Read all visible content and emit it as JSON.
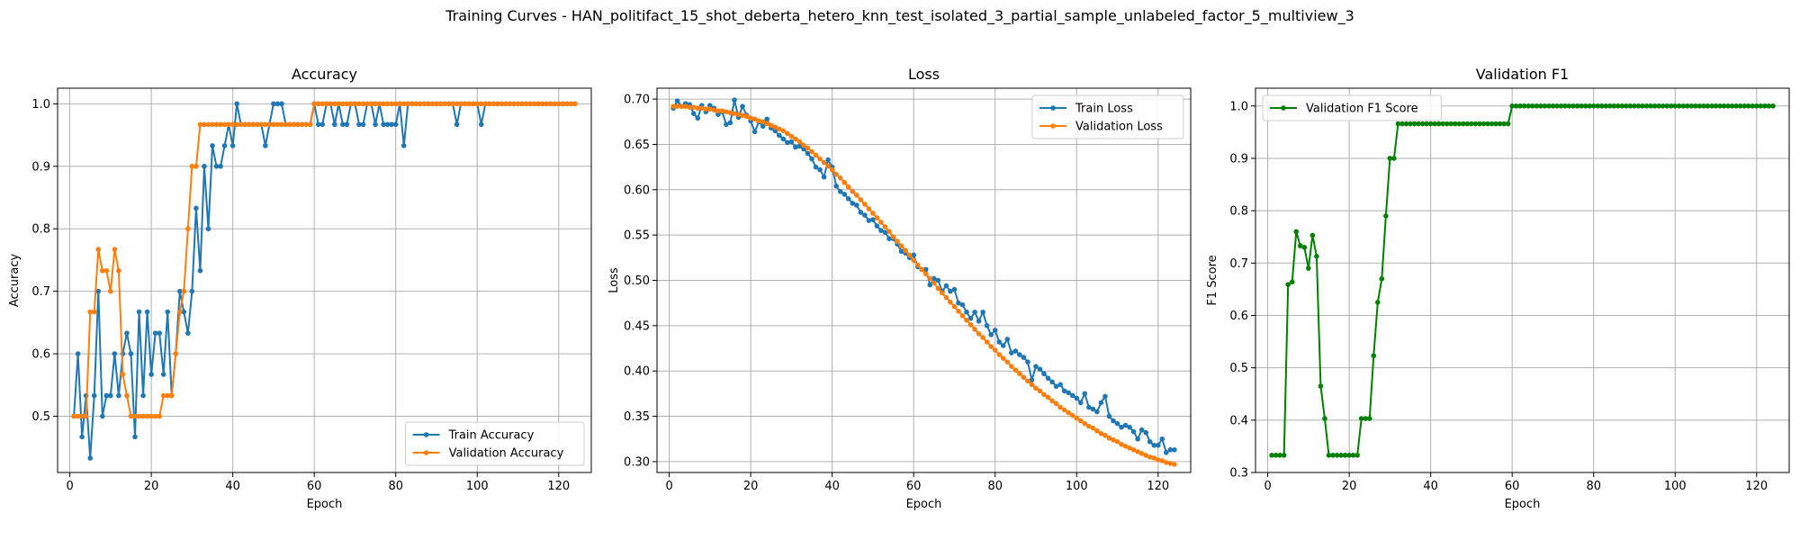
{
  "figure": {
    "suptitle": "Training Curves - HAN_politifact_15_shot_deberta_hetero_knn_test_isolated_3_partial_sample_unlabeled_factor_5_multiview_3"
  },
  "colors": {
    "blue": "#1f77b4",
    "orange": "#ff7f0e",
    "green": "#008000",
    "grid": "#b0b0b0"
  },
  "chart_data": [
    {
      "type": "line",
      "title": "Accuracy",
      "xlabel": "Epoch",
      "ylabel": "Accuracy",
      "xlim": [
        -3,
        128
      ],
      "ylim": [
        0.41,
        1.025
      ],
      "xticks": [
        0,
        20,
        40,
        60,
        80,
        100,
        120
      ],
      "yticks": [
        0.5,
        0.6,
        0.7,
        0.8,
        0.9,
        1.0
      ],
      "ytick_labels": [
        "0.5",
        "0.6",
        "0.7",
        "0.8",
        "0.9",
        "1.0"
      ],
      "grid": true,
      "legend": "lower-right",
      "x": [
        1,
        2,
        3,
        4,
        5,
        6,
        7,
        8,
        9,
        10,
        11,
        12,
        13,
        14,
        15,
        16,
        17,
        18,
        19,
        20,
        21,
        22,
        23,
        24,
        25,
        26,
        27,
        28,
        29,
        30,
        31,
        32,
        33,
        34,
        35,
        36,
        37,
        38,
        39,
        40,
        41,
        42,
        43,
        44,
        45,
        46,
        47,
        48,
        49,
        50,
        51,
        52,
        53,
        54,
        55,
        56,
        57,
        58,
        59,
        60,
        61,
        62,
        63,
        64,
        65,
        66,
        67,
        68,
        69,
        70,
        71,
        72,
        73,
        74,
        75,
        76,
        77,
        78,
        79,
        80,
        81,
        82,
        83,
        84,
        85,
        86,
        87,
        88,
        89,
        90,
        91,
        92,
        93,
        94,
        95,
        96,
        97,
        98,
        99,
        100,
        101,
        102,
        103,
        104,
        105,
        106,
        107,
        108,
        109,
        110,
        111,
        112,
        113,
        114,
        115,
        116,
        117,
        118,
        119,
        120,
        121,
        122,
        123,
        124
      ],
      "series": [
        {
          "name": "Train Accuracy",
          "color": "#1f77b4",
          "values": [
            0.5,
            0.6,
            0.467,
            0.533,
            0.433,
            0.533,
            0.7,
            0.5,
            0.533,
            0.533,
            0.6,
            0.533,
            0.6,
            0.633,
            0.6,
            0.467,
            0.667,
            0.533,
            0.667,
            0.567,
            0.633,
            0.633,
            0.567,
            0.667,
            0.533,
            0.6,
            0.7,
            0.667,
            0.633,
            0.7,
            0.833,
            0.733,
            0.9,
            0.8,
            0.933,
            0.9,
            0.9,
            0.933,
            0.967,
            0.933,
            1.0,
            0.967,
            0.967,
            0.967,
            0.967,
            0.967,
            0.967,
            0.933,
            0.967,
            1.0,
            1.0,
            1.0,
            0.967,
            0.967,
            0.967,
            0.967,
            0.967,
            0.967,
            0.967,
            1.0,
            0.967,
            0.967,
            1.0,
            1.0,
            0.967,
            1.0,
            0.967,
            0.967,
            1.0,
            1.0,
            0.967,
            0.967,
            1.0,
            1.0,
            0.967,
            1.0,
            0.967,
            0.967,
            0.967,
            0.967,
            1.0,
            0.933,
            1.0,
            1.0,
            1.0,
            1.0,
            1.0,
            1.0,
            1.0,
            1.0,
            1.0,
            1.0,
            1.0,
            1.0,
            0.967,
            1.0,
            1.0,
            1.0,
            1.0,
            1.0,
            0.967,
            1.0,
            1.0,
            1.0,
            1.0,
            1.0,
            1.0,
            1.0,
            1.0,
            1.0,
            1.0,
            1.0,
            1.0,
            1.0,
            1.0,
            1.0,
            1.0,
            1.0,
            1.0,
            1.0,
            1.0,
            1.0,
            1.0,
            1.0
          ]
        },
        {
          "name": "Validation Accuracy",
          "color": "#ff7f0e",
          "values": [
            0.5,
            0.5,
            0.5,
            0.5,
            0.667,
            0.667,
            0.767,
            0.733,
            0.733,
            0.7,
            0.767,
            0.733,
            0.567,
            0.533,
            0.5,
            0.5,
            0.5,
            0.5,
            0.5,
            0.5,
            0.5,
            0.5,
            0.533,
            0.533,
            0.533,
            0.6,
            0.667,
            0.7,
            0.8,
            0.9,
            0.9,
            0.967,
            0.967,
            0.967,
            0.967,
            0.967,
            0.967,
            0.967,
            0.967,
            0.967,
            0.967,
            0.967,
            0.967,
            0.967,
            0.967,
            0.967,
            0.967,
            0.967,
            0.967,
            0.967,
            0.967,
            0.967,
            0.967,
            0.967,
            0.967,
            0.967,
            0.967,
            0.967,
            0.967,
            1.0,
            1.0,
            1.0,
            1.0,
            1.0,
            1.0,
            1.0,
            1.0,
            1.0,
            1.0,
            1.0,
            1.0,
            1.0,
            1.0,
            1.0,
            1.0,
            1.0,
            1.0,
            1.0,
            1.0,
            1.0,
            1.0,
            1.0,
            1.0,
            1.0,
            1.0,
            1.0,
            1.0,
            1.0,
            1.0,
            1.0,
            1.0,
            1.0,
            1.0,
            1.0,
            1.0,
            1.0,
            1.0,
            1.0,
            1.0,
            1.0,
            1.0,
            1.0,
            1.0,
            1.0,
            1.0,
            1.0,
            1.0,
            1.0,
            1.0,
            1.0,
            1.0,
            1.0,
            1.0,
            1.0,
            1.0,
            1.0,
            1.0,
            1.0,
            1.0,
            1.0,
            1.0,
            1.0,
            1.0,
            1.0
          ]
        }
      ]
    },
    {
      "type": "line",
      "title": "Loss",
      "xlabel": "Epoch",
      "ylabel": "Loss",
      "xlim": [
        -3,
        128
      ],
      "ylim": [
        0.288,
        0.712
      ],
      "xticks": [
        0,
        20,
        40,
        60,
        80,
        100,
        120
      ],
      "yticks": [
        0.3,
        0.35,
        0.4,
        0.45,
        0.5,
        0.55,
        0.6,
        0.65,
        0.7
      ],
      "ytick_labels": [
        "0.30",
        "0.35",
        "0.40",
        "0.45",
        "0.50",
        "0.55",
        "0.60",
        "0.65",
        "0.70"
      ],
      "grid": true,
      "legend": "top-right",
      "x": [
        1,
        2,
        3,
        4,
        5,
        6,
        7,
        8,
        9,
        10,
        11,
        12,
        13,
        14,
        15,
        16,
        17,
        18,
        19,
        20,
        21,
        22,
        23,
        24,
        25,
        26,
        27,
        28,
        29,
        30,
        31,
        32,
        33,
        34,
        35,
        36,
        37,
        38,
        39,
        40,
        41,
        42,
        43,
        44,
        45,
        46,
        47,
        48,
        49,
        50,
        51,
        52,
        53,
        54,
        55,
        56,
        57,
        58,
        59,
        60,
        61,
        62,
        63,
        64,
        65,
        66,
        67,
        68,
        69,
        70,
        71,
        72,
        73,
        74,
        75,
        76,
        77,
        78,
        79,
        80,
        81,
        82,
        83,
        84,
        85,
        86,
        87,
        88,
        89,
        90,
        91,
        92,
        93,
        94,
        95,
        96,
        97,
        98,
        99,
        100,
        101,
        102,
        103,
        104,
        105,
        106,
        107,
        108,
        109,
        110,
        111,
        112,
        113,
        114,
        115,
        116,
        117,
        118,
        119,
        120,
        121,
        122,
        123,
        124
      ],
      "series": [
        {
          "name": "Train Loss",
          "color": "#1f77b4",
          "values": [
            0.69,
            0.698,
            0.692,
            0.695,
            0.694,
            0.684,
            0.679,
            0.693,
            0.686,
            0.693,
            0.69,
            0.683,
            0.686,
            0.672,
            0.674,
            0.699,
            0.68,
            0.692,
            0.682,
            0.676,
            0.664,
            0.675,
            0.67,
            0.678,
            0.668,
            0.665,
            0.66,
            0.656,
            0.652,
            0.653,
            0.647,
            0.648,
            0.645,
            0.64,
            0.634,
            0.625,
            0.622,
            0.614,
            0.633,
            0.625,
            0.604,
            0.598,
            0.595,
            0.59,
            0.585,
            0.583,
            0.575,
            0.572,
            0.566,
            0.567,
            0.56,
            0.555,
            0.553,
            0.546,
            0.546,
            0.54,
            0.532,
            0.53,
            0.525,
            0.528,
            0.515,
            0.512,
            0.512,
            0.495,
            0.502,
            0.5,
            0.488,
            0.494,
            0.488,
            0.49,
            0.475,
            0.473,
            0.465,
            0.458,
            0.465,
            0.455,
            0.465,
            0.45,
            0.44,
            0.445,
            0.432,
            0.428,
            0.435,
            0.42,
            0.422,
            0.418,
            0.415,
            0.41,
            0.39,
            0.405,
            0.402,
            0.397,
            0.392,
            0.388,
            0.383,
            0.385,
            0.378,
            0.376,
            0.373,
            0.37,
            0.365,
            0.375,
            0.36,
            0.358,
            0.355,
            0.365,
            0.372,
            0.35,
            0.345,
            0.342,
            0.338,
            0.34,
            0.338,
            0.333,
            0.325,
            0.335,
            0.332,
            0.322,
            0.318,
            0.318,
            0.325,
            0.31,
            0.313,
            0.313
          ]
        },
        {
          "name": "Validation Loss",
          "color": "#ff7f0e",
          "values": [
            0.692,
            0.692,
            0.692,
            0.692,
            0.691,
            0.691,
            0.69,
            0.69,
            0.689,
            0.689,
            0.688,
            0.687,
            0.687,
            0.686,
            0.685,
            0.684,
            0.683,
            0.682,
            0.681,
            0.679,
            0.678,
            0.676,
            0.675,
            0.673,
            0.671,
            0.669,
            0.667,
            0.665,
            0.662,
            0.659,
            0.656,
            0.653,
            0.649,
            0.646,
            0.642,
            0.638,
            0.634,
            0.63,
            0.626,
            0.622,
            0.617,
            0.613,
            0.608,
            0.603,
            0.598,
            0.594,
            0.589,
            0.584,
            0.579,
            0.574,
            0.569,
            0.564,
            0.559,
            0.554,
            0.548,
            0.543,
            0.538,
            0.533,
            0.528,
            0.522,
            0.517,
            0.512,
            0.507,
            0.502,
            0.497,
            0.491,
            0.486,
            0.481,
            0.476,
            0.471,
            0.466,
            0.461,
            0.456,
            0.451,
            0.446,
            0.441,
            0.437,
            0.432,
            0.427,
            0.423,
            0.418,
            0.414,
            0.41,
            0.405,
            0.401,
            0.397,
            0.393,
            0.389,
            0.385,
            0.381,
            0.378,
            0.374,
            0.371,
            0.367,
            0.364,
            0.36,
            0.357,
            0.354,
            0.351,
            0.348,
            0.345,
            0.342,
            0.339,
            0.337,
            0.334,
            0.331,
            0.329,
            0.326,
            0.324,
            0.322,
            0.319,
            0.317,
            0.315,
            0.313,
            0.311,
            0.309,
            0.307,
            0.305,
            0.304,
            0.302,
            0.301,
            0.299,
            0.298,
            0.297
          ]
        }
      ]
    },
    {
      "type": "line",
      "title": "Validation F1",
      "xlabel": "Epoch",
      "ylabel": "F1 Score",
      "xlim": [
        -3,
        128
      ],
      "ylim": [
        0.3,
        1.034
      ],
      "xticks": [
        0,
        20,
        40,
        60,
        80,
        100,
        120
      ],
      "yticks": [
        0.3,
        0.4,
        0.5,
        0.6,
        0.7,
        0.8,
        0.9,
        1.0
      ],
      "ytick_labels": [
        "0.3",
        "0.4",
        "0.5",
        "0.6",
        "0.7",
        "0.8",
        "0.9",
        "1.0"
      ],
      "grid": true,
      "legend": "top-left",
      "x": [
        1,
        2,
        3,
        4,
        5,
        6,
        7,
        8,
        9,
        10,
        11,
        12,
        13,
        14,
        15,
        16,
        17,
        18,
        19,
        20,
        21,
        22,
        23,
        24,
        25,
        26,
        27,
        28,
        29,
        30,
        31,
        32,
        33,
        34,
        35,
        36,
        37,
        38,
        39,
        40,
        41,
        42,
        43,
        44,
        45,
        46,
        47,
        48,
        49,
        50,
        51,
        52,
        53,
        54,
        55,
        56,
        57,
        58,
        59,
        60,
        61,
        62,
        63,
        64,
        65,
        66,
        67,
        68,
        69,
        70,
        71,
        72,
        73,
        74,
        75,
        76,
        77,
        78,
        79,
        80,
        81,
        82,
        83,
        84,
        85,
        86,
        87,
        88,
        89,
        90,
        91,
        92,
        93,
        94,
        95,
        96,
        97,
        98,
        99,
        100,
        101,
        102,
        103,
        104,
        105,
        106,
        107,
        108,
        109,
        110,
        111,
        112,
        113,
        114,
        115,
        116,
        117,
        118,
        119,
        120,
        121,
        122,
        123,
        124
      ],
      "series": [
        {
          "name": "Validation F1 Score",
          "color": "#008000",
          "values": [
            0.333,
            0.333,
            0.333,
            0.333,
            0.659,
            0.664,
            0.76,
            0.733,
            0.73,
            0.69,
            0.753,
            0.713,
            0.465,
            0.403,
            0.333,
            0.333,
            0.333,
            0.333,
            0.333,
            0.333,
            0.333,
            0.333,
            0.403,
            0.403,
            0.403,
            0.523,
            0.625,
            0.67,
            0.79,
            0.9,
            0.9,
            0.966,
            0.966,
            0.966,
            0.966,
            0.966,
            0.966,
            0.966,
            0.966,
            0.966,
            0.966,
            0.966,
            0.966,
            0.966,
            0.966,
            0.966,
            0.966,
            0.966,
            0.966,
            0.966,
            0.966,
            0.966,
            0.966,
            0.966,
            0.966,
            0.966,
            0.966,
            0.966,
            0.966,
            1.0,
            1.0,
            1.0,
            1.0,
            1.0,
            1.0,
            1.0,
            1.0,
            1.0,
            1.0,
            1.0,
            1.0,
            1.0,
            1.0,
            1.0,
            1.0,
            1.0,
            1.0,
            1.0,
            1.0,
            1.0,
            1.0,
            1.0,
            1.0,
            1.0,
            1.0,
            1.0,
            1.0,
            1.0,
            1.0,
            1.0,
            1.0,
            1.0,
            1.0,
            1.0,
            1.0,
            1.0,
            1.0,
            1.0,
            1.0,
            1.0,
            1.0,
            1.0,
            1.0,
            1.0,
            1.0,
            1.0,
            1.0,
            1.0,
            1.0,
            1.0,
            1.0,
            1.0,
            1.0,
            1.0,
            1.0,
            1.0,
            1.0,
            1.0,
            1.0,
            1.0,
            1.0,
            1.0,
            1.0,
            1.0
          ]
        }
      ]
    }
  ]
}
